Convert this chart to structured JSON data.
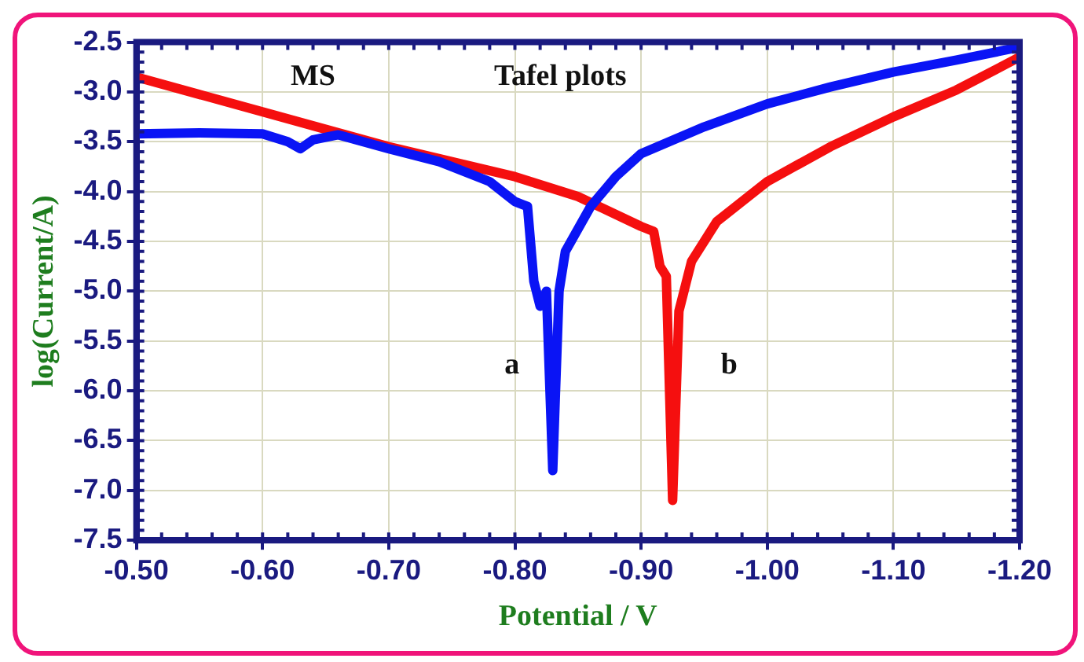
{
  "chart_data": {
    "type": "line",
    "xlabel": "Potential / V",
    "ylabel": "log(Current/A)",
    "xlim": [
      -0.5,
      -1.2
    ],
    "xticks": [
      {
        "value": -0.5,
        "label": "-0.50"
      },
      {
        "value": -0.6,
        "label": "-0.60"
      },
      {
        "value": -0.7,
        "label": "-0.70"
      },
      {
        "value": -0.8,
        "label": "-0.80"
      },
      {
        "value": -0.9,
        "label": "-0.90"
      },
      {
        "value": -1.0,
        "label": "-1.00"
      },
      {
        "value": -1.1,
        "label": "-1.10"
      },
      {
        "value": -1.2,
        "label": "-1.20"
      }
    ],
    "ylim": [
      -7.5,
      -2.5
    ],
    "yticks": [
      {
        "value": -7.5,
        "label": "-7.5"
      },
      {
        "value": -7,
        "label": "-7.0"
      },
      {
        "value": -6.5,
        "label": "-6.5"
      },
      {
        "value": -6,
        "label": "-6.0"
      },
      {
        "value": -5.5,
        "label": "-5.5"
      },
      {
        "value": -5,
        "label": "-5.0"
      },
      {
        "value": -4.5,
        "label": "-4.5"
      },
      {
        "value": -4,
        "label": "-4.0"
      },
      {
        "value": -3.5,
        "label": "-3.5"
      },
      {
        "value": -3,
        "label": "-3.0"
      },
      {
        "value": -2.5,
        "label": "-2.5"
      }
    ],
    "grid": true,
    "legend": false,
    "marker": "none",
    "line_style": "solid",
    "series": [
      {
        "name": "a",
        "color": "#0a14f5",
        "x": [
          -0.5,
          -0.55,
          -0.6,
          -0.62,
          -0.63,
          -0.64,
          -0.66,
          -0.7,
          -0.74,
          -0.78,
          -0.8,
          -0.81,
          -0.815,
          -0.82,
          -0.825,
          -0.83,
          -0.835,
          -0.84,
          -0.86,
          -0.88,
          -0.9,
          -0.95,
          -1.0,
          -1.05,
          -1.1,
          -1.15,
          -1.2
        ],
        "values": [
          -3.42,
          -3.41,
          -3.42,
          -3.5,
          -3.57,
          -3.48,
          -3.43,
          -3.57,
          -3.7,
          -3.9,
          -4.1,
          -4.15,
          -4.9,
          -5.15,
          -5.0,
          -6.8,
          -5.0,
          -4.6,
          -4.15,
          -3.85,
          -3.62,
          -3.35,
          -3.12,
          -2.95,
          -2.8,
          -2.68,
          -2.55
        ]
      },
      {
        "name": "b",
        "color": "#f50f0f",
        "x": [
          -0.5,
          -0.6,
          -0.7,
          -0.8,
          -0.85,
          -0.9,
          -0.91,
          -0.915,
          -0.92,
          -0.925,
          -0.93,
          -0.94,
          -0.96,
          -1.0,
          -1.05,
          -1.1,
          -1.15,
          -1.2
        ],
        "values": [
          -2.85,
          -3.2,
          -3.55,
          -3.85,
          -4.05,
          -4.35,
          -4.4,
          -4.75,
          -4.85,
          -7.1,
          -5.2,
          -4.7,
          -4.3,
          -3.9,
          -3.55,
          -3.25,
          -2.98,
          -2.65
        ]
      }
    ],
    "annotations": [
      "MS",
      "Tafel plots"
    ]
  }
}
